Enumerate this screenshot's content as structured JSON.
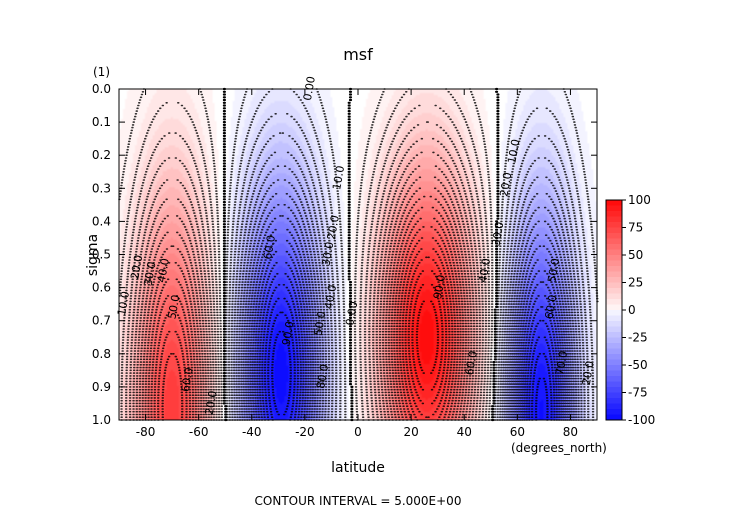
{
  "chart_data": {
    "type": "heatmap",
    "title": "msf",
    "xlabel": "latitude",
    "ylabel": "sigma",
    "x_units": "(degrees_north)",
    "y_units": "(1)",
    "xlim": [
      -90,
      90
    ],
    "ylim": [
      1.0,
      0.0
    ],
    "x_ticks": [
      -80,
      -60,
      -40,
      -20,
      0,
      20,
      40,
      60,
      80
    ],
    "y_ticks": [
      0.0,
      0.1,
      0.2,
      0.3,
      0.4,
      0.5,
      0.6,
      0.7,
      0.8,
      0.9,
      1.0
    ],
    "colorbar": {
      "range": [
        -100,
        100
      ],
      "ticks": [
        100,
        75,
        50,
        25,
        0,
        -25,
        -50,
        -75,
        -100
      ],
      "colors": {
        "positive": "#ff0000",
        "zero": "#ffffff",
        "negative": "#0000ff"
      }
    },
    "contour_interval_text": "CONTOUR INTERVAL = 5.000E+00",
    "cells": [
      {
        "name": "southern-positive-cell",
        "lat_center": -70,
        "lat_halfwidth": 22,
        "sigma_center": 0.96,
        "sigma_halfdepth": 0.95,
        "peak": 80
      },
      {
        "name": "southern-negative-cell",
        "lat_center": -29,
        "lat_halfwidth": 23,
        "sigma_center": 0.86,
        "sigma_halfdepth": 0.85,
        "peak": -100
      },
      {
        "name": "equatorial-positive-cell",
        "lat_center": 26,
        "lat_halfwidth": 26,
        "sigma_center": 0.75,
        "sigma_halfdepth": 0.76,
        "peak": 100
      },
      {
        "name": "northern-negative-cell",
        "lat_center": 69,
        "lat_halfwidth": 19,
        "sigma_center": 0.97,
        "sigma_halfdepth": 0.9,
        "peak": -98
      }
    ],
    "contour_labels": [
      {
        "text": "0.00",
        "lat": -17,
        "sigma": 0.0
      },
      {
        "text": "10.0",
        "lat": -87,
        "sigma": 0.65
      },
      {
        "text": "20.0",
        "lat": -82,
        "sigma": 0.54
      },
      {
        "text": "30.0",
        "lat": -77,
        "sigma": 0.56
      },
      {
        "text": "40.0",
        "lat": -72,
        "sigma": 0.55
      },
      {
        "text": "50.0",
        "lat": -68,
        "sigma": 0.66
      },
      {
        "text": "60.0",
        "lat": -63,
        "sigma": 0.88
      },
      {
        "text": "20.0",
        "lat": -54,
        "sigma": 0.95
      },
      {
        "text": "10.0",
        "lat": -6,
        "sigma": 0.27
      },
      {
        "text": "20.0",
        "lat": -8,
        "sigma": 0.42
      },
      {
        "text": "30.0",
        "lat": -10,
        "sigma": 0.5
      },
      {
        "text": "40.0",
        "lat": -9,
        "sigma": 0.63
      },
      {
        "text": "50.0",
        "lat": -13,
        "sigma": 0.71
      },
      {
        "text": "60.0",
        "lat": -32,
        "sigma": 0.48
      },
      {
        "text": "90.0",
        "lat": -25,
        "sigma": 0.74
      },
      {
        "text": "80.0",
        "lat": -12,
        "sigma": 0.87
      },
      {
        "text": "0.00",
        "lat": -1,
        "sigma": 0.68
      },
      {
        "text": "90.0",
        "lat": 32,
        "sigma": 0.6
      },
      {
        "text": "60.0",
        "lat": 44,
        "sigma": 0.83
      },
      {
        "text": "40.0",
        "lat": 49,
        "sigma": 0.55
      },
      {
        "text": "30.0",
        "lat": 54,
        "sigma": 0.44
      },
      {
        "text": "20.0",
        "lat": 57,
        "sigma": 0.29
      },
      {
        "text": "10.0",
        "lat": 60,
        "sigma": 0.19
      },
      {
        "text": "50.0",
        "lat": 75,
        "sigma": 0.55
      },
      {
        "text": "60.0",
        "lat": 74,
        "sigma": 0.66
      },
      {
        "text": "70.0",
        "lat": 78,
        "sigma": 0.83
      },
      {
        "text": "20.0",
        "lat": 88,
        "sigma": 0.86
      }
    ]
  }
}
